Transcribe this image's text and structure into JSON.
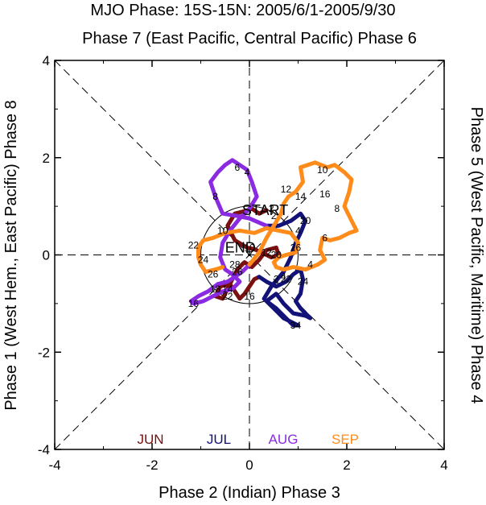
{
  "chart_data": {
    "type": "line",
    "title": "MJO Phase: 15S-15N: 2005/6/1-2005/9/30",
    "top_label": "Phase 7 (East Pacific, Central Pacific) Phase 6",
    "bottom_label": "Phase 2 (Indian) Phase 3",
    "left_label": "Phase 1 (West Hem., East Pacific) Phase 8",
    "right_label": "Phase 5 (West Pacific, Maritime) Phase 4",
    "xlim": [
      -4,
      4
    ],
    "ylim": [
      -4,
      4
    ],
    "x_ticks": [
      "-4",
      "-2",
      "0",
      "2",
      "4"
    ],
    "y_ticks": [
      "-4",
      "-2",
      "0",
      "2",
      "4"
    ],
    "start_label": "START",
    "end_label": "END",
    "legend": [
      {
        "name": "JUN",
        "color": "#7a1010"
      },
      {
        "name": "JUL",
        "color": "#121278"
      },
      {
        "name": "AUG",
        "color": "#8a2be2"
      },
      {
        "name": "SEP",
        "color": "#ff8c1a"
      }
    ],
    "series": [
      {
        "name": "JUN",
        "color": "#7a1010",
        "points": [
          [
            0.35,
            0.92
          ],
          [
            0.2,
            0.85
          ],
          [
            0.05,
            0.95
          ],
          [
            -0.1,
            0.9
          ],
          [
            -0.3,
            0.85
          ],
          [
            -0.45,
            0.6
          ],
          [
            -0.3,
            0.3
          ],
          [
            -0.05,
            0.15
          ],
          [
            0.1,
            0.12
          ],
          [
            0.25,
            0.05
          ],
          [
            0.45,
            -0.05
          ],
          [
            0.6,
            0.0
          ],
          [
            0.55,
            0.15
          ],
          [
            0.35,
            0.1
          ],
          [
            0.2,
            -0.1
          ],
          [
            0.05,
            -0.25
          ],
          [
            -0.1,
            -0.15
          ],
          [
            -0.25,
            -0.3
          ],
          [
            -0.35,
            -0.5
          ],
          [
            -0.45,
            -0.7
          ],
          [
            -0.55,
            -0.9
          ],
          [
            -0.7,
            -0.85
          ],
          [
            -0.6,
            -0.65
          ],
          [
            -0.4,
            -0.6
          ],
          [
            -0.3,
            -0.75
          ],
          [
            -0.2,
            -0.9
          ],
          [
            -0.1,
            -0.8
          ],
          [
            0.0,
            -0.65
          ],
          [
            0.1,
            -0.5
          ],
          [
            0.2,
            -0.45
          ]
        ],
        "labels": [
          {
            "text": "2",
            "x": 0.45,
            "y": 0.95
          },
          {
            "text": "20",
            "x": 0.55,
            "y": 0.0
          },
          {
            "text": "10",
            "x": 0.0,
            "y": 0.15
          },
          {
            "text": "12",
            "x": 0.35,
            "y": 0.05
          },
          {
            "text": "26",
            "x": -0.25,
            "y": -0.35
          },
          {
            "text": "22",
            "x": -0.45,
            "y": -0.85
          },
          {
            "text": "14",
            "x": -0.45,
            "y": -0.7
          }
        ]
      },
      {
        "name": "JUL",
        "color": "#121278",
        "points": [
          [
            0.2,
            -0.45
          ],
          [
            0.35,
            -0.55
          ],
          [
            0.55,
            -0.65
          ],
          [
            0.75,
            -0.55
          ],
          [
            0.9,
            -0.4
          ],
          [
            1.05,
            -0.3
          ],
          [
            1.1,
            -0.5
          ],
          [
            1.05,
            -0.8
          ],
          [
            0.95,
            -0.95
          ],
          [
            1.05,
            -1.1
          ],
          [
            1.25,
            -1.3
          ],
          [
            1.15,
            -1.25
          ],
          [
            0.9,
            -1.2
          ],
          [
            0.7,
            -1.0
          ],
          [
            0.55,
            -0.8
          ],
          [
            0.35,
            -0.95
          ],
          [
            0.55,
            -1.1
          ],
          [
            0.75,
            -1.3
          ],
          [
            0.9,
            -1.45
          ],
          [
            1.0,
            -1.45
          ],
          [
            0.7,
            -1.3
          ],
          [
            0.5,
            -1.1
          ],
          [
            0.3,
            -0.9
          ],
          [
            0.45,
            -0.65
          ],
          [
            0.7,
            -0.35
          ],
          [
            0.85,
            -0.05
          ],
          [
            0.95,
            0.25
          ],
          [
            1.05,
            0.45
          ],
          [
            1.15,
            0.7
          ],
          [
            1.05,
            0.85
          ],
          [
            0.85,
            0.7
          ],
          [
            0.6,
            0.6
          ],
          [
            0.35,
            0.6
          ]
        ],
        "labels": [
          {
            "text": "2",
            "x": 0.55,
            "y": -0.5
          },
          {
            "text": "4",
            "x": 0.7,
            "y": -0.45
          },
          {
            "text": "22",
            "x": 0.75,
            "y": -0.5
          },
          {
            "text": "24",
            "x": 1.1,
            "y": -0.55
          },
          {
            "text": "26",
            "x": 0.95,
            "y": 0.15
          },
          {
            "text": "20",
            "x": 1.15,
            "y": 0.7
          },
          {
            "text": "2",
            "x": 0.5,
            "y": 0.8
          },
          {
            "text": "4",
            "x": 1.0,
            "y": 0.5
          },
          {
            "text": "34",
            "x": 0.95,
            "y": -1.45
          },
          {
            "text": "16",
            "x": 0.0,
            "y": -0.85
          }
        ]
      },
      {
        "name": "AUG",
        "color": "#8a2be2",
        "points": [
          [
            0.35,
            0.6
          ],
          [
            0.0,
            0.75
          ],
          [
            -0.25,
            0.8
          ],
          [
            -0.55,
            0.85
          ],
          [
            -0.7,
            1.2
          ],
          [
            -0.8,
            1.5
          ],
          [
            -0.65,
            1.7
          ],
          [
            -0.5,
            1.85
          ],
          [
            -0.35,
            1.95
          ],
          [
            -0.2,
            1.85
          ],
          [
            -0.05,
            1.75
          ],
          [
            0.05,
            1.5
          ],
          [
            0.15,
            1.2
          ],
          [
            0.0,
            0.95
          ],
          [
            -0.2,
            0.75
          ],
          [
            -0.4,
            0.5
          ],
          [
            -0.55,
            0.25
          ],
          [
            -0.6,
            -0.05
          ],
          [
            -0.5,
            -0.3
          ],
          [
            -0.35,
            -0.4
          ],
          [
            -0.2,
            -0.55
          ],
          [
            -0.35,
            -0.7
          ],
          [
            -0.55,
            -0.75
          ],
          [
            -0.75,
            -0.85
          ],
          [
            -0.95,
            -0.95
          ],
          [
            -1.15,
            -1.0
          ],
          [
            -1.2,
            -0.95
          ],
          [
            -1.05,
            -0.85
          ],
          [
            -0.85,
            -0.75
          ],
          [
            -0.65,
            -0.6
          ],
          [
            -0.45,
            -0.55
          ],
          [
            -0.3,
            -0.45
          ],
          [
            -0.15,
            -0.35
          ],
          [
            0.0,
            -0.2
          ]
        ],
        "labels": [
          {
            "text": "6",
            "x": -0.25,
            "y": 1.8
          },
          {
            "text": "4",
            "x": -0.05,
            "y": 1.7
          },
          {
            "text": "8",
            "x": -0.7,
            "y": 1.2
          },
          {
            "text": "10",
            "x": -0.55,
            "y": 0.5
          },
          {
            "text": "18",
            "x": -0.7,
            "y": -0.7
          },
          {
            "text": "16",
            "x": -1.15,
            "y": -1.0
          },
          {
            "text": "28",
            "x": -0.3,
            "y": -0.2
          }
        ]
      },
      {
        "name": "SEP",
        "color": "#ff8c1a",
        "points": [
          [
            0.0,
            -0.2
          ],
          [
            0.2,
            0.05
          ],
          [
            0.35,
            0.35
          ],
          [
            0.5,
            0.6
          ],
          [
            0.65,
            0.85
          ],
          [
            0.7,
            1.05
          ],
          [
            0.8,
            1.2
          ],
          [
            0.95,
            1.3
          ],
          [
            1.1,
            1.5
          ],
          [
            1.05,
            1.8
          ],
          [
            1.2,
            1.85
          ],
          [
            1.35,
            1.9
          ],
          [
            1.6,
            1.8
          ],
          [
            1.75,
            1.85
          ],
          [
            1.95,
            1.7
          ],
          [
            2.1,
            1.55
          ],
          [
            2.05,
            1.3
          ],
          [
            1.95,
            1.0
          ],
          [
            2.05,
            0.8
          ],
          [
            2.2,
            0.5
          ],
          [
            2.05,
            0.45
          ],
          [
            1.85,
            0.35
          ],
          [
            1.65,
            0.3
          ],
          [
            1.5,
            0.35
          ],
          [
            1.45,
            0.1
          ],
          [
            1.55,
            -0.1
          ],
          [
            1.4,
            -0.2
          ],
          [
            1.15,
            -0.3
          ],
          [
            0.9,
            -0.25
          ],
          [
            0.7,
            -0.3
          ],
          [
            0.55,
            -0.25
          ],
          [
            0.5,
            -0.15
          ],
          [
            0.6,
            -0.05
          ],
          [
            0.75,
            0.0
          ],
          [
            0.95,
            0.05
          ],
          [
            1.0,
            0.25
          ],
          [
            0.85,
            0.45
          ],
          [
            0.6,
            0.5
          ],
          [
            0.35,
            0.55
          ],
          [
            0.1,
            0.45
          ],
          [
            -0.2,
            0.5
          ],
          [
            -0.5,
            0.45
          ],
          [
            -0.75,
            0.35
          ],
          [
            -0.95,
            0.3
          ],
          [
            -1.05,
            0.15
          ],
          [
            -1.05,
            -0.05
          ],
          [
            -1.0,
            -0.2
          ],
          [
            -0.9,
            -0.35
          ],
          [
            -0.7,
            -0.3
          ],
          [
            -0.55,
            -0.25
          ]
        ],
        "labels": [
          {
            "text": "10",
            "x": 1.5,
            "y": 1.75
          },
          {
            "text": "12",
            "x": 0.75,
            "y": 1.35
          },
          {
            "text": "14",
            "x": 1.05,
            "y": 1.2
          },
          {
            "text": "16",
            "x": 1.55,
            "y": 1.25
          },
          {
            "text": "8",
            "x": 1.8,
            "y": 0.95
          },
          {
            "text": "6",
            "x": 1.55,
            "y": 0.35
          },
          {
            "text": "4",
            "x": 1.25,
            "y": -0.2
          },
          {
            "text": "22",
            "x": -1.15,
            "y": 0.2
          },
          {
            "text": "24",
            "x": -0.95,
            "y": -0.1
          },
          {
            "text": "26",
            "x": -0.75,
            "y": -0.4
          }
        ]
      }
    ]
  }
}
